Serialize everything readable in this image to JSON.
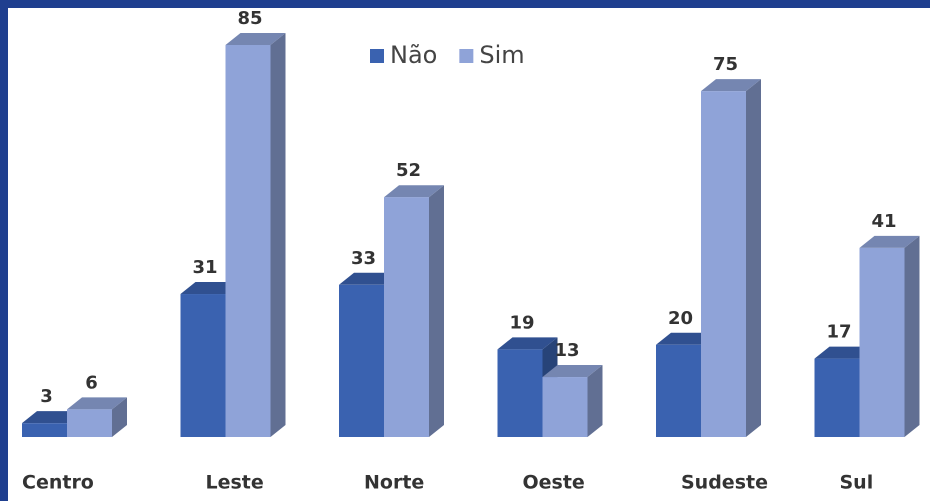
{
  "chart_data": {
    "type": "bar",
    "categories": [
      "Centro",
      "Leste",
      "Norte",
      "Oeste",
      "Sudeste",
      "Sul"
    ],
    "series": [
      {
        "name": "Não",
        "color": "#3a62b0",
        "values": [
          3,
          31,
          33,
          19,
          20,
          17
        ]
      },
      {
        "name": "Sim",
        "color": "#8fa3d8",
        "values": [
          6,
          85,
          52,
          13,
          75,
          41
        ]
      }
    ],
    "legend": "top"
  }
}
